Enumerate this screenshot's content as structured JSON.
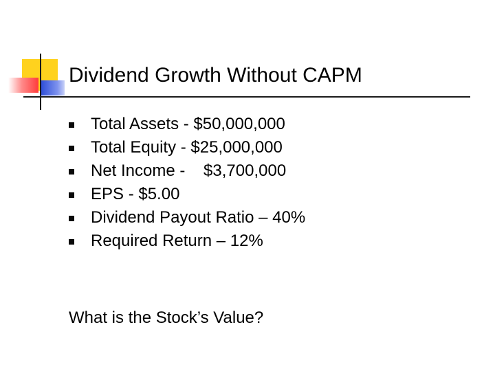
{
  "slide": {
    "title": "Dividend Growth Without CAPM",
    "bullets": [
      "Total Assets - $50,000,000",
      "Total Equity - $25,000,000",
      "Net Income -    $3,700,000",
      "EPS - $5.00",
      "Dividend Payout Ratio – 40%",
      "Required Return – 12%"
    ],
    "question": "What is the Stock’s Value?"
  },
  "colors": {
    "deco_yellow": "#ffd21e",
    "deco_red": "#ff3b3b",
    "deco_blue": "#2f4fd8",
    "text": "#000000"
  },
  "icons": {
    "bullet": "square-bullet-icon",
    "logo": "slide-decoration-logo"
  }
}
